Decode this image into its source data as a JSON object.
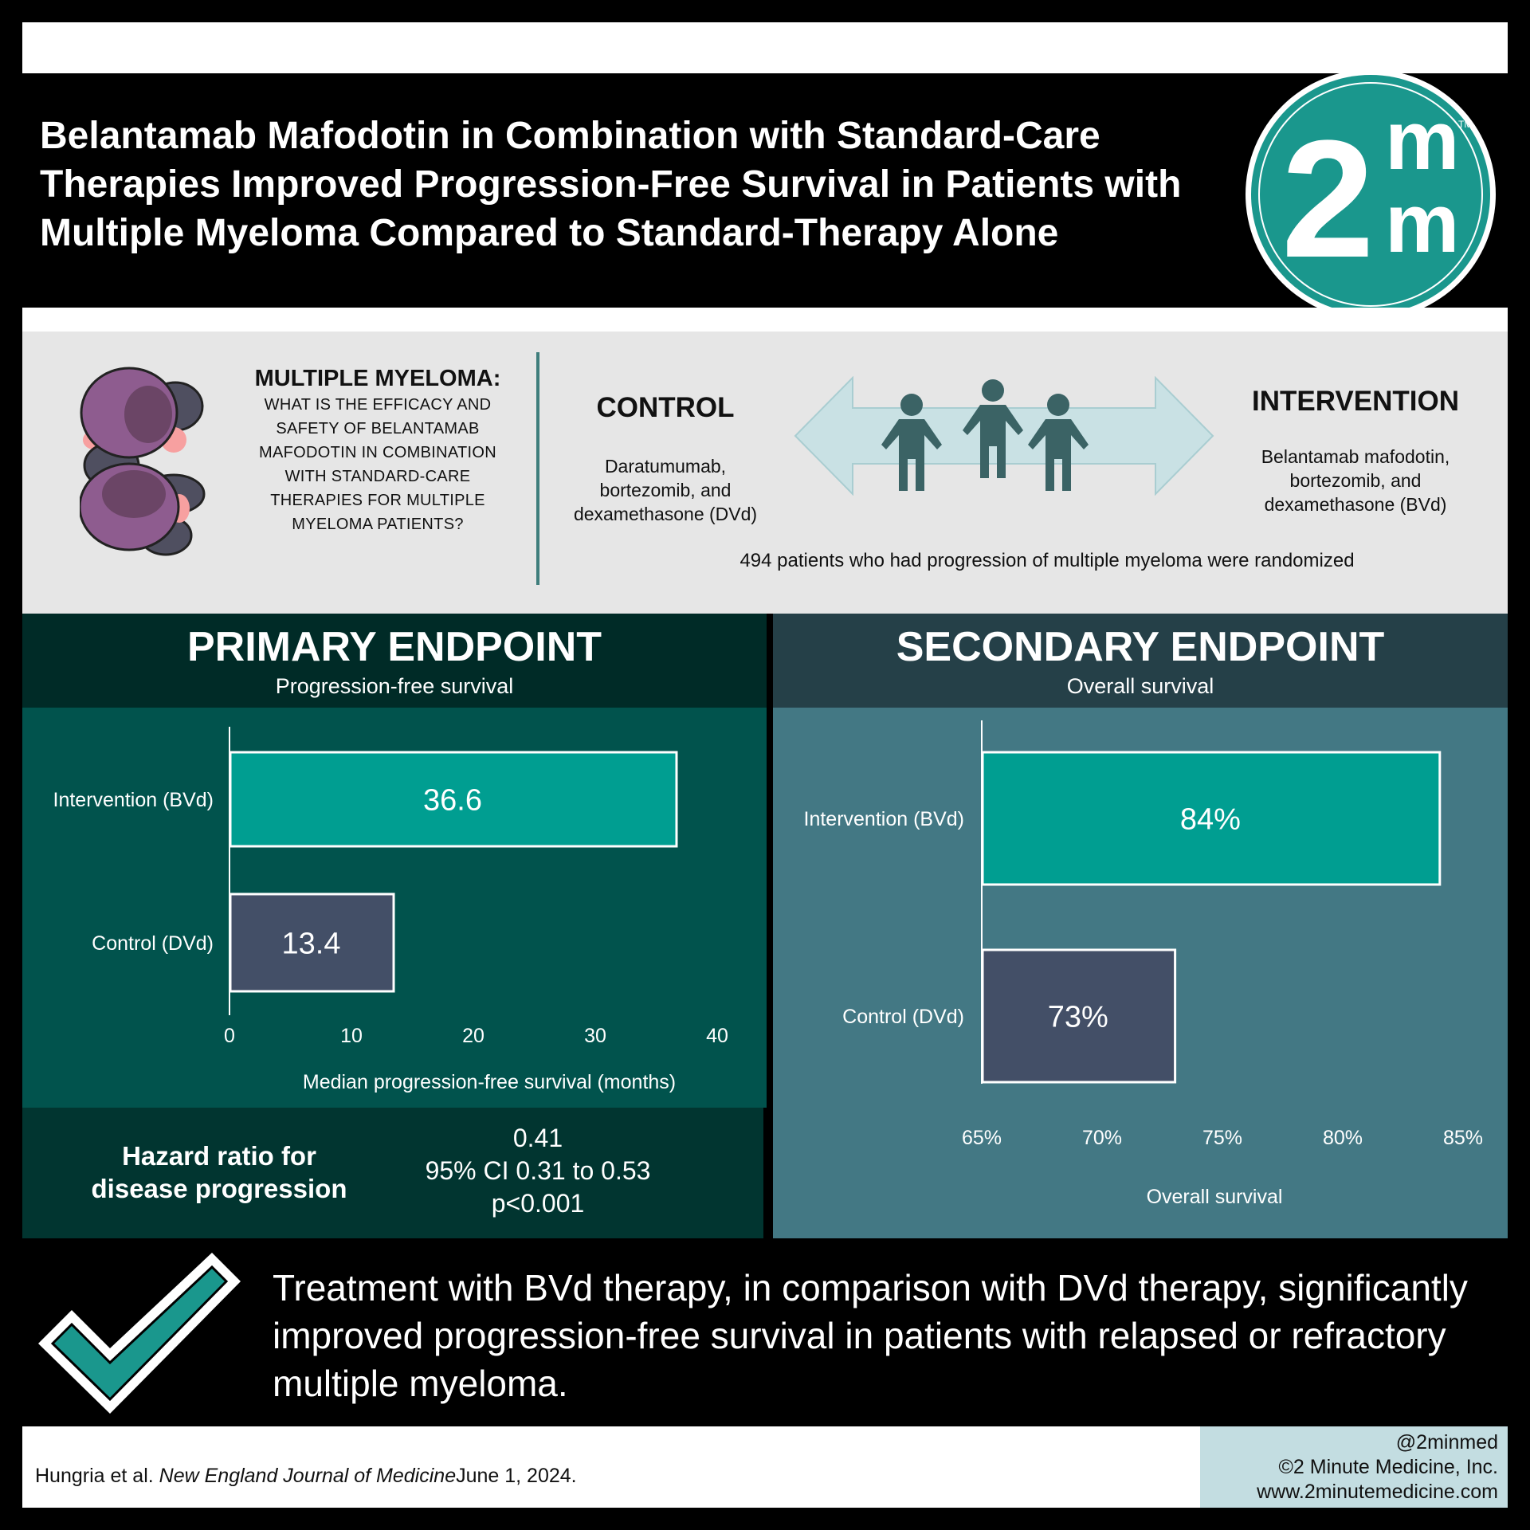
{
  "title": "Belantamab Mafodotin in Combination with Standard-Care Therapies Improved Progression-Free Survival in Patients with Multiple Myeloma Compared to Standard-Therapy Alone",
  "logo": {
    "digit": "2",
    "letter_top": "m",
    "letter_bottom": "m",
    "tm": "TM"
  },
  "question": {
    "lead": "MULTIPLE MYELOMA:",
    "rest": "What is the efficacy and safety of belantamab mafodotin in combination with standard-care therapies for multiple myeloma patients?"
  },
  "control": {
    "heading": "CONTROL",
    "description": "Daratumumab, bortezomib, and dexamethasone (DVd)"
  },
  "intervention": {
    "heading": "INTERVENTION",
    "description": "Belantamab mafodotin, bortezomib, and dexamethasone (BVd)"
  },
  "randomized_note": "494 patients who had progression of multiple myeloma were randomized",
  "primary": {
    "heading": "PRIMARY ENDPOINT",
    "subheading": "Progression-free survival"
  },
  "secondary": {
    "heading": "SECONDARY ENDPOINT",
    "subheading": "Overall survival"
  },
  "chart_data": [
    {
      "type": "bar",
      "orientation": "horizontal",
      "categories": [
        "Intervention (BVd)",
        "Control (DVd)"
      ],
      "values": [
        36.6,
        13.4
      ],
      "value_labels": [
        "36.6",
        "13.4"
      ],
      "xlabel": "Median progression-free survival (months)",
      "xlim": [
        0,
        40
      ],
      "ticks": [
        0,
        10,
        20,
        30,
        40
      ],
      "tick_labels": [
        "0",
        "10",
        "20",
        "30",
        "40"
      ],
      "colors": [
        "#009e91",
        "#434f67"
      ]
    },
    {
      "type": "bar",
      "orientation": "horizontal",
      "categories": [
        "Intervention (BVd)",
        "Control (DVd)"
      ],
      "values": [
        84,
        73
      ],
      "value_labels": [
        "84%",
        "73%"
      ],
      "xlabel": "Overall survival",
      "xlim": [
        65,
        85
      ],
      "ticks": [
        65,
        70,
        75,
        80,
        85
      ],
      "tick_labels": [
        "65%",
        "70%",
        "75%",
        "80%",
        "85%"
      ],
      "colors": [
        "#009e91",
        "#434f67"
      ]
    }
  ],
  "hazard": {
    "label_line1": "Hazard ratio for",
    "label_line2": "disease progression",
    "ratio": "0.41",
    "ci": "95% CI 0.31 to 0.53",
    "p": "p<0.001"
  },
  "conclusion": "Treatment with BVd therapy, in comparison with DVd therapy, significantly improved progression-free survival in patients with relapsed or refractory multiple myeloma.",
  "citation": {
    "authors": "Hungria et al.",
    "journal": "New England Journal of Medicine",
    "date": "June 1, 2024."
  },
  "credit": {
    "handle": "@2minmed",
    "company": "©2 Minute Medicine, Inc.",
    "url": "www.2minutemedicine.com"
  },
  "colors": {
    "teal": "#009e91",
    "slate": "#434f67",
    "dark_teal": "#01534d",
    "steel": "#437884",
    "figure": "#3b6365"
  }
}
